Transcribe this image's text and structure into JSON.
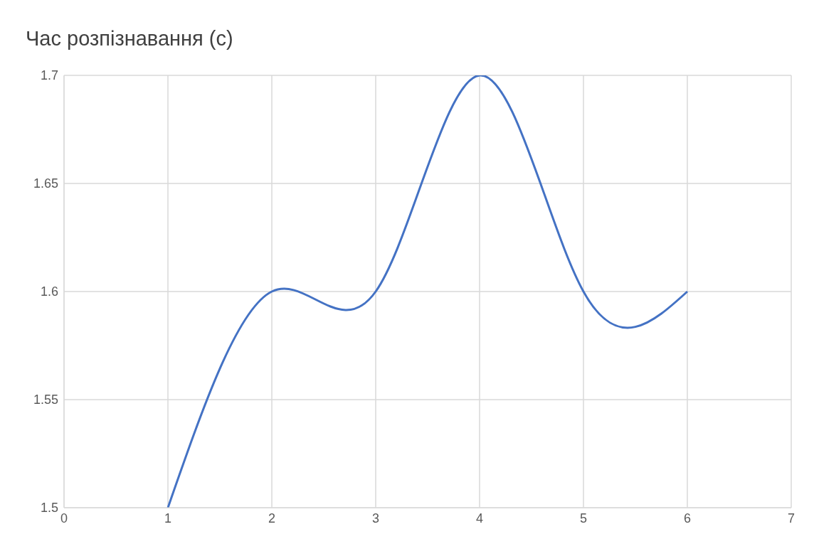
{
  "chart_data": {
    "type": "line",
    "title": "Час розпізнавання (с)",
    "x": [
      1,
      2,
      3,
      4,
      5,
      6
    ],
    "series": [
      {
        "color": "#4472c4",
        "values": [
          1.5,
          1.6,
          1.6,
          1.7,
          1.6,
          1.6
        ]
      }
    ],
    "xlim": [
      0,
      7
    ],
    "xticks": [
      0,
      1,
      2,
      3,
      4,
      5,
      6,
      7
    ],
    "ylim": [
      1.5,
      1.7
    ],
    "yticks": [
      1.5,
      1.55,
      1.6,
      1.65,
      1.7
    ],
    "grid": true,
    "marker": "none",
    "line_style": "solid",
    "legend": false
  }
}
